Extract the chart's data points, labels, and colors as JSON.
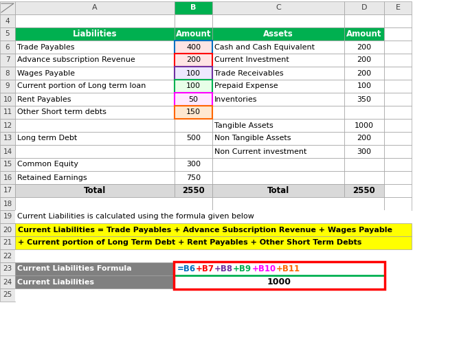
{
  "fig_w": 6.84,
  "fig_h": 5.27,
  "dpi": 100,
  "col_header_bg": "#00B050",
  "col_header_fg": "#FFFFFF",
  "gray_bg": "#808080",
  "gray_fg": "#FFFFFF",
  "yellow_bg": "#FFFF00",
  "yellow_fg": "#000000",
  "total_bg": "#D9D9D9",
  "white": "#FFFFFF",
  "light_gray_header": "#D9D9D9",
  "col_label_bg": "#E8E8E8",
  "row_label_bg": "#E8E8E8",
  "cell_border": "#A0A0A0",
  "liabilities_rows": [
    [
      "Trade Payables",
      "400"
    ],
    [
      "Advance subscription Revenue",
      "200"
    ],
    [
      "Wages Payable",
      "100"
    ],
    [
      "Current portion of Long term loan",
      "100"
    ],
    [
      "Rent Payables",
      "50"
    ],
    [
      "Other Short term debts",
      "150"
    ],
    [
      "",
      ""
    ],
    [
      "Long term Debt",
      "500"
    ],
    [
      "",
      ""
    ],
    [
      "Common Equity",
      "300"
    ],
    [
      "Retained Earnings",
      "750"
    ]
  ],
  "assets_rows": [
    [
      "Cash and Cash Equivalent",
      "200"
    ],
    [
      "Current Investment",
      "200"
    ],
    [
      "Trade Receivables",
      "200"
    ],
    [
      "Prepaid Expense",
      "100"
    ],
    [
      "Inventories",
      "350"
    ],
    [
      "",
      ""
    ],
    [
      "Tangible Assets",
      "1000"
    ],
    [
      "Non Tangible Assets",
      "200"
    ],
    [
      "Non Current investment",
      "300"
    ],
    [
      "",
      ""
    ],
    [
      "",
      ""
    ]
  ],
  "b_cell_bg": [
    "#FFE4E4",
    "#FFE4E4",
    "#EEE8FF",
    "#E8FFE8",
    "#FFE8FF",
    "#FFE8D0"
  ],
  "b_cell_border": [
    "#0070C0",
    "#FF0000",
    "#7030A0",
    "#00B050",
    "#FF00FF",
    "#FF6600"
  ],
  "formula_parts": [
    {
      "text": "=B6",
      "color": "#0070C0"
    },
    {
      "text": "+B7",
      "color": "#FF0000"
    },
    {
      "text": "+B8",
      "color": "#7030A0"
    },
    {
      "text": "+B9",
      "color": "#00B050"
    },
    {
      "text": "+B10",
      "color": "#FF00FF"
    },
    {
      "text": "+B11",
      "color": "#FF6600"
    }
  ],
  "row19_text": "Current Liabilities is calculated using the formula given below",
  "formula_line1": "Current Liabilities = Trade Payables + Advance Subscription Revenue + Wages Payable",
  "formula_line2": "+ Current portion of Long Term Debt + Rent Payables + Other Short Term Debts",
  "cell23_label": "Current Liabilities Formula",
  "cell24_label": "Current Liabilities",
  "cell24_value": "1000",
  "red_border": "#FF0000",
  "green_line": "#00B050"
}
